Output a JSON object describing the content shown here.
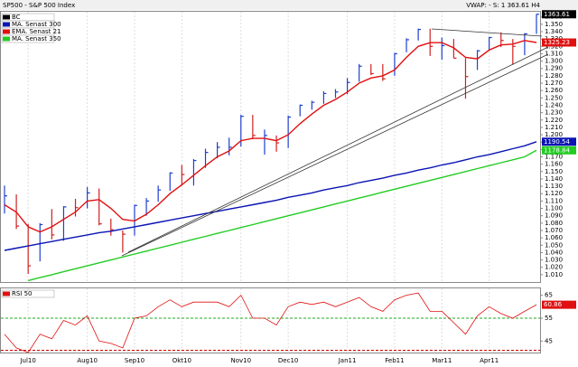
{
  "chart_data": [
    {
      "type": "ohlc",
      "title": "SP500 - S&P 500 Index",
      "header": "VWAP: -  S: 1 363.61  H4",
      "categories": [
        null,
        null,
        "Jul10",
        null,
        null,
        null,
        null,
        "Aug10",
        null,
        null,
        null,
        "Sep10",
        null,
        null,
        null,
        "Okt10",
        null,
        null,
        null,
        null,
        "Nov10",
        null,
        null,
        null,
        "Dec10",
        null,
        null,
        null,
        null,
        "Jan11",
        null,
        null,
        null,
        "Feb11",
        null,
        null,
        null,
        "Mar11",
        null,
        null,
        null,
        "Apr11",
        null,
        null,
        null,
        null
      ],
      "ylim": [
        1000,
        1367
      ],
      "yticks": [
        {
          "value": 1010,
          "label": "1.010"
        },
        {
          "value": 1020,
          "label": "1.020"
        },
        {
          "value": 1030,
          "label": "1.030"
        },
        {
          "value": 1040,
          "label": "1.040"
        },
        {
          "value": 1050,
          "label": "1.050"
        },
        {
          "value": 1060,
          "label": "1.060"
        },
        {
          "value": 1070,
          "label": "1.070"
        },
        {
          "value": 1080,
          "label": "1.080"
        },
        {
          "value": 1090,
          "label": "1.090"
        },
        {
          "value": 1100,
          "label": "1.100"
        },
        {
          "value": 1110,
          "label": "1.110"
        },
        {
          "value": 1120,
          "label": "1.120"
        },
        {
          "value": 1130,
          "label": "1.130"
        },
        {
          "value": 1140,
          "label": "1.140"
        },
        {
          "value": 1150,
          "label": "1.150"
        },
        {
          "value": 1160,
          "label": "1.160"
        },
        {
          "value": 1170,
          "label": "1.170"
        },
        {
          "value": 1180,
          "label": "1.180"
        },
        {
          "value": 1190,
          "label": "1.190"
        },
        {
          "value": 1200,
          "label": "1.200"
        },
        {
          "value": 1210,
          "label": "1.210"
        },
        {
          "value": 1220,
          "label": "1.220"
        },
        {
          "value": 1230,
          "label": "1.230"
        },
        {
          "value": 1240,
          "label": "1.240"
        },
        {
          "value": 1250,
          "label": "1.250"
        },
        {
          "value": 1260,
          "label": "1.260"
        },
        {
          "value": 1270,
          "label": "1.270"
        },
        {
          "value": 1280,
          "label": "1.280"
        },
        {
          "value": 1290,
          "label": "1.290"
        },
        {
          "value": 1300,
          "label": "1.300"
        },
        {
          "value": 1310,
          "label": "1.310"
        },
        {
          "value": 1320,
          "label": "1.320"
        },
        {
          "value": 1330,
          "label": "1.330"
        },
        {
          "value": 1340,
          "label": "1.340"
        },
        {
          "value": 1350,
          "label": "1.350"
        },
        {
          "value": 1360,
          "label": "1.360"
        }
      ],
      "grid": true,
      "legend": "upper left",
      "up_color": "#1f3fd0",
      "down_color": "#d01f1f",
      "series": [
        {
          "name": "BC",
          "color": "#000000",
          "kind": "bars",
          "values": [
            1117,
            1076,
            1022,
            1078,
            1064,
            1102,
            1101,
            1121,
            1079,
            1071,
            1065,
            1104,
            1110,
            1125,
            1148,
            1146,
            1165,
            1176,
            1183,
            1183,
            1225,
            1199,
            1199,
            1189,
            1224,
            1240,
            1244,
            1256,
            1258,
            1271,
            1293,
            1283,
            1276,
            1310,
            1329,
            1343,
            1320,
            1321,
            1304,
            1279,
            1314,
            1332,
            1328,
            1320,
            1337,
            1363.61
          ],
          "high": [
            1131,
            1119,
            1079,
            1080,
            1099,
            1103,
            1113,
            1129,
            1127,
            1086,
            1070,
            1105,
            1114,
            1131,
            1149,
            1159,
            1167,
            1181,
            1190,
            1196,
            1227,
            1227,
            1207,
            1199,
            1226,
            1241,
            1246,
            1259,
            1262,
            1277,
            1296,
            1296,
            1296,
            1311,
            1331,
            1344,
            1344,
            1332,
            1330,
            1304,
            1315,
            1333,
            1339,
            1330,
            1338,
            1364
          ],
          "low": [
            1093,
            1072,
            1011,
            1028,
            1058,
            1056,
            1089,
            1100,
            1077,
            1063,
            1040,
            1063,
            1090,
            1109,
            1124,
            1131,
            1131,
            1155,
            1168,
            1172,
            1184,
            1194,
            1173,
            1177,
            1182,
            1225,
            1234,
            1242,
            1250,
            1255,
            1272,
            1281,
            1273,
            1280,
            1312,
            1328,
            1307,
            1302,
            1304,
            1249,
            1288,
            1314,
            1319,
            1295,
            1308,
            1337
          ]
        },
        {
          "name": "MA. Senast 300",
          "color": "#0a14b4",
          "kind": "line",
          "values": [
            1043,
            1046,
            1049,
            1052,
            1055,
            1058,
            1061,
            1064,
            1067,
            1069,
            1072,
            1075,
            1078,
            1081,
            1084,
            1087,
            1090,
            1093,
            1096,
            1099,
            1102,
            1105,
            1108,
            1111,
            1115,
            1118,
            1121,
            1125,
            1128,
            1131,
            1135,
            1138,
            1141,
            1145,
            1148,
            1152,
            1155,
            1159,
            1162,
            1166,
            1170,
            1173,
            1177,
            1181,
            1185,
            1190.54
          ]
        },
        {
          "name": "EMA. Senast 21",
          "color": "#e01010",
          "kind": "line",
          "values": [
            1105,
            1095,
            1075,
            1068,
            1075,
            1085,
            1095,
            1110,
            1112,
            1100,
            1085,
            1083,
            1092,
            1105,
            1120,
            1132,
            1145,
            1158,
            1170,
            1178,
            1192,
            1195,
            1195,
            1192,
            1200,
            1215,
            1228,
            1240,
            1248,
            1258,
            1270,
            1277,
            1280,
            1288,
            1305,
            1320,
            1325,
            1325,
            1318,
            1305,
            1303,
            1315,
            1322,
            1323,
            1328,
            1325.23
          ]
        },
        {
          "name": "MA. Senast 350",
          "color": "#22cc22",
          "kind": "line",
          "values": [
            null,
            null,
            1002,
            1006,
            1010,
            1014,
            1018,
            1022,
            1026,
            1030,
            1034,
            1038,
            1042,
            1046,
            1050,
            1054,
            1058,
            1062,
            1066,
            1070,
            1074,
            1078,
            1082,
            1086,
            1090,
            1094,
            1098,
            1102,
            1106,
            1110,
            1114,
            1118,
            1122,
            1126,
            1130,
            1134,
            1138,
            1142,
            1146,
            1150,
            1154,
            1158,
            1162,
            1166,
            1170,
            1178.84
          ]
        }
      ]
    },
    {
      "type": "line",
      "ylim": [
        40,
        68
      ],
      "yticks": [
        45,
        55,
        65
      ],
      "legend": "upper left",
      "reference_lines": [
        {
          "value": 55,
          "color": "#22aa22"
        },
        {
          "value": 41,
          "color": "#cc0000"
        }
      ],
      "series": [
        {
          "name": "RSI 50",
          "color": "#e01010",
          "values": [
            48,
            42,
            40,
            48,
            46,
            54,
            52,
            56,
            45,
            44,
            42,
            55,
            56,
            60,
            63,
            60,
            62,
            62,
            62,
            60,
            65,
            55,
            55,
            52,
            60,
            62,
            61,
            62,
            60,
            62,
            64,
            60,
            58,
            63,
            65,
            66,
            58,
            58,
            53,
            48,
            56,
            60,
            57,
            55,
            58,
            60.86
          ]
        }
      ]
    }
  ]
}
